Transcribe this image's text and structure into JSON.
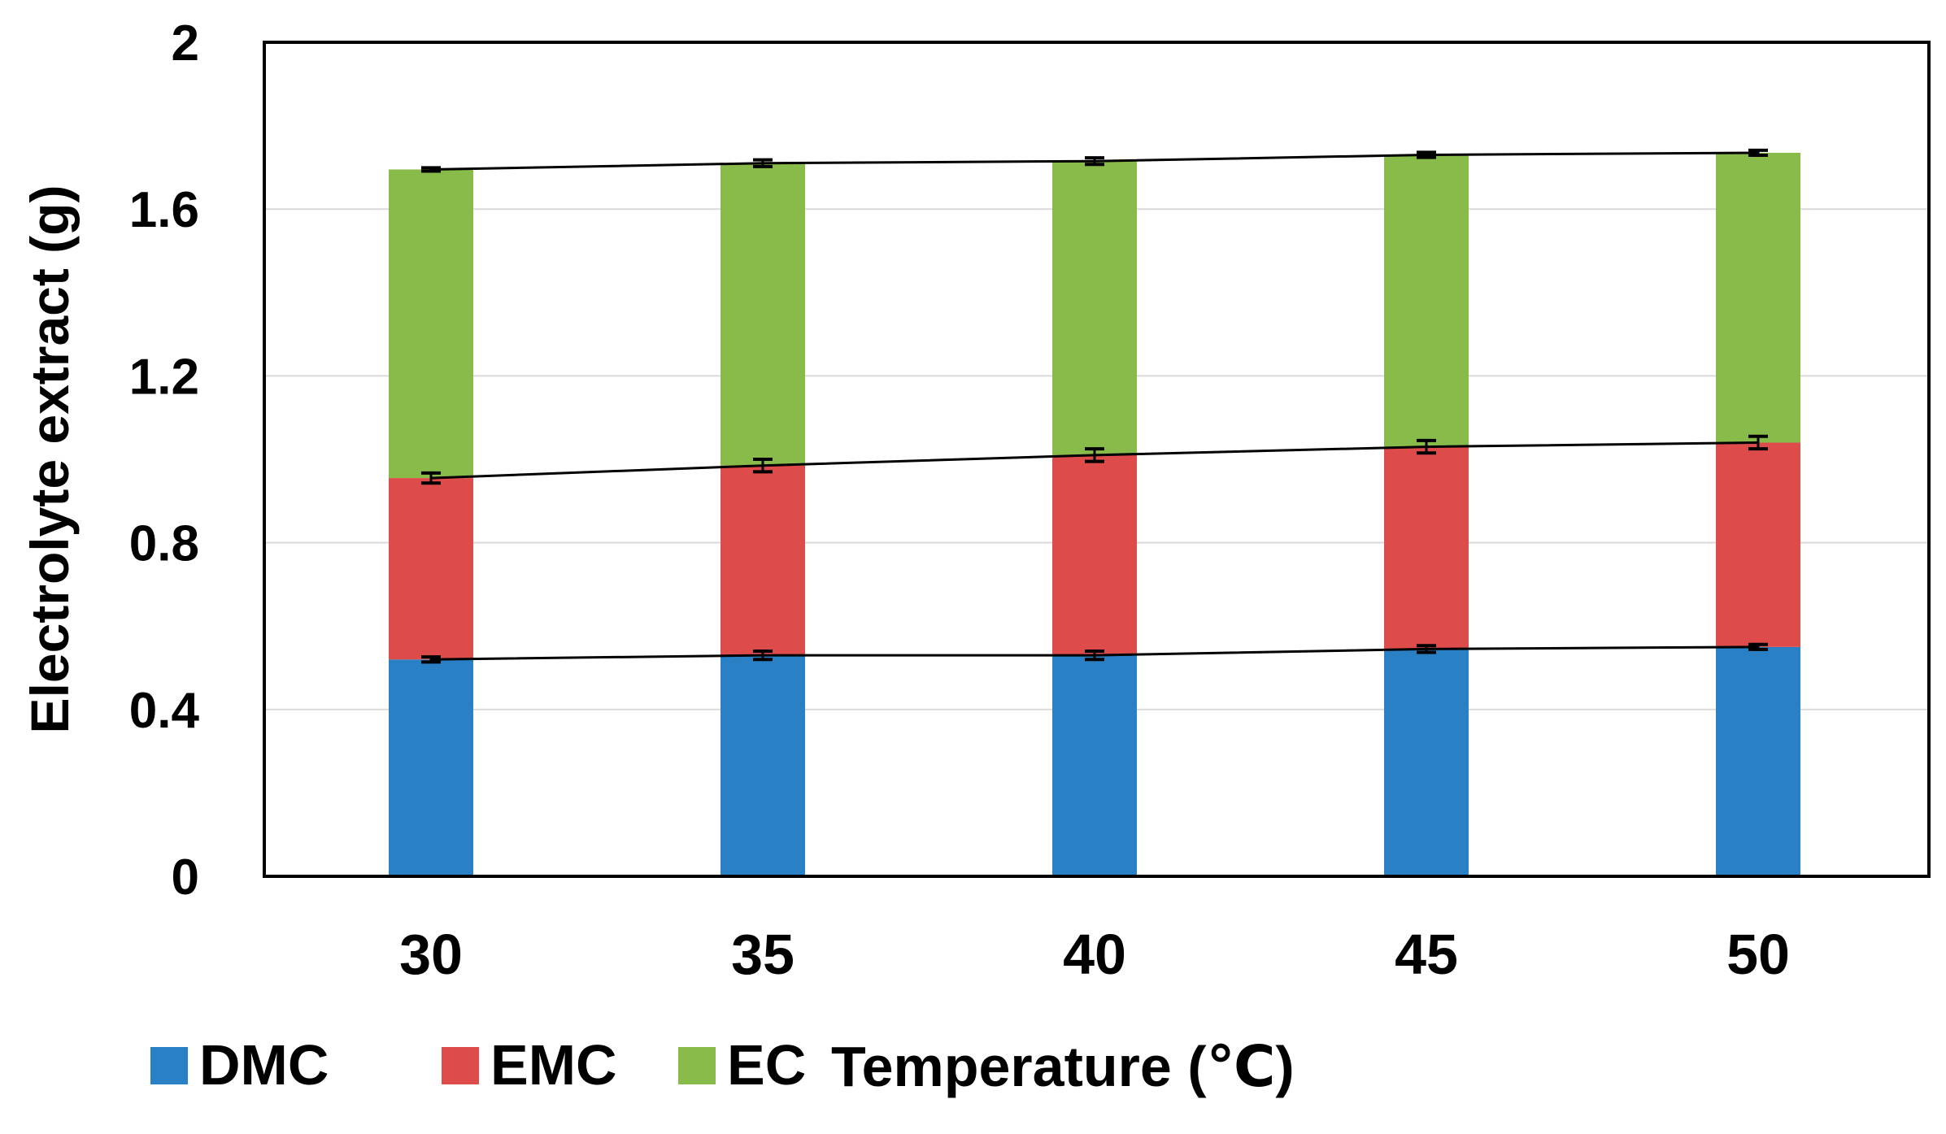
{
  "chart_data": {
    "type": "bar",
    "stacked": true,
    "title": "",
    "xlabel": "Temperature (℃)",
    "ylabel": "Electrolyte extract (g)",
    "ylim": [
      0,
      2
    ],
    "yticks": [
      "0",
      "0.4",
      "0.8",
      "1.2",
      "1.6",
      "2"
    ],
    "ytick_values": [
      0,
      0.4,
      0.8,
      1.2,
      1.6,
      2.0
    ],
    "categories": [
      "30",
      "35",
      "40",
      "45",
      "50"
    ],
    "grid": true,
    "legend_position": "bottom-left",
    "series": [
      {
        "name": "DMC",
        "color": "#2a80c4",
        "values": [
          0.52,
          0.53,
          0.53,
          0.545,
          0.55
        ],
        "errors": [
          0.006,
          0.01,
          0.01,
          0.008,
          0.006
        ]
      },
      {
        "name": "EMC",
        "color": "#de4b4b",
        "values": [
          0.435,
          0.455,
          0.48,
          0.485,
          0.49
        ],
        "errors": [
          0.012,
          0.015,
          0.015,
          0.015,
          0.015
        ]
      },
      {
        "name": "EC",
        "color": "#88bb4a",
        "values": [
          0.74,
          0.725,
          0.705,
          0.7,
          0.695
        ],
        "errors": [
          0.004,
          0.008,
          0.008,
          0.006,
          0.006
        ]
      }
    ]
  }
}
